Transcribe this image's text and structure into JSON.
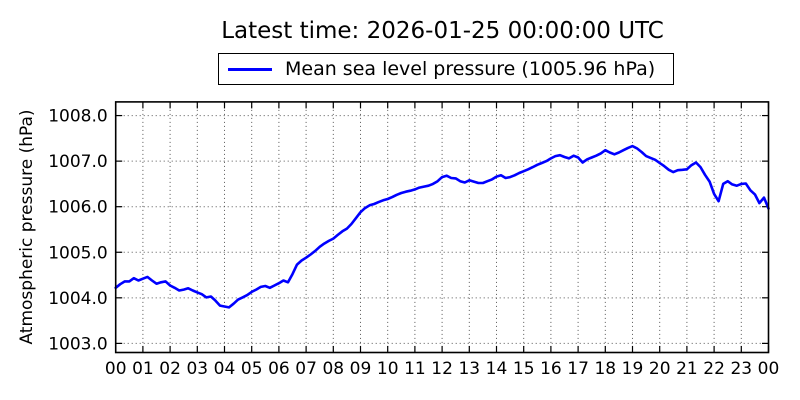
{
  "title": "Latest time: 2026-01-25 00:00:00 UTC",
  "legend": {
    "label": "Mean sea level pressure (1005.96 hPa)",
    "line_color": "#0000ff"
  },
  "axes": {
    "ylabel": "Atmospheric pressure (hPa)",
    "background": "#ffffff",
    "border_color": "#000000",
    "grid_color": "#555555"
  },
  "chart_data": {
    "type": "line",
    "title": "Latest time: 2026-01-25 00:00:00 UTC",
    "xlabel": "",
    "ylabel": "Atmospheric pressure (hPa)",
    "xlim": [
      0,
      24
    ],
    "ylim": [
      1002.8,
      1008.3
    ],
    "grid": true,
    "legend_position": "upper center",
    "x_tick_labels": [
      "00",
      "01",
      "02",
      "03",
      "04",
      "05",
      "06",
      "07",
      "08",
      "09",
      "10",
      "11",
      "12",
      "13",
      "14",
      "15",
      "16",
      "17",
      "18",
      "19",
      "20",
      "21",
      "22",
      "23",
      "00"
    ],
    "y_tick_values": [
      1008.0,
      1007.0,
      1006.0,
      1005.0,
      1004.0,
      1003.0
    ],
    "y_tick_labels": [
      "1008.0",
      "1007.0",
      "1006.0",
      "1005.0",
      "1004.0",
      "1003.0"
    ],
    "series": [
      {
        "name": "Mean sea level pressure",
        "color": "#0000ff",
        "latest_value_hpa": 1005.96,
        "x_start_hour": 0,
        "x_step_minutes": 10,
        "y_hpa": [
          1004.22,
          1004.3,
          1004.36,
          1004.36,
          1004.43,
          1004.38,
          1004.42,
          1004.46,
          1004.38,
          1004.31,
          1004.34,
          1004.36,
          1004.27,
          1004.22,
          1004.16,
          1004.18,
          1004.21,
          1004.16,
          1004.12,
          1004.08,
          1004.01,
          1004.03,
          1003.94,
          1003.83,
          1003.81,
          1003.79,
          1003.87,
          1003.96,
          1004.01,
          1004.06,
          1004.13,
          1004.18,
          1004.24,
          1004.26,
          1004.22,
          1004.27,
          1004.32,
          1004.38,
          1004.34,
          1004.52,
          1004.73,
          1004.82,
          1004.88,
          1004.95,
          1005.03,
          1005.12,
          1005.19,
          1005.25,
          1005.3,
          1005.38,
          1005.46,
          1005.52,
          1005.62,
          1005.75,
          1005.88,
          1005.97,
          1006.03,
          1006.06,
          1006.1,
          1006.14,
          1006.17,
          1006.21,
          1006.26,
          1006.3,
          1006.33,
          1006.35,
          1006.38,
          1006.42,
          1006.44,
          1006.46,
          1006.5,
          1006.56,
          1006.65,
          1006.68,
          1006.63,
          1006.62,
          1006.56,
          1006.53,
          1006.58,
          1006.55,
          1006.52,
          1006.52,
          1006.56,
          1006.6,
          1006.66,
          1006.69,
          1006.63,
          1006.65,
          1006.69,
          1006.74,
          1006.78,
          1006.82,
          1006.87,
          1006.92,
          1006.96,
          1007.0,
          1007.06,
          1007.11,
          1007.13,
          1007.09,
          1007.06,
          1007.12,
          1007.08,
          1006.97,
          1007.04,
          1007.08,
          1007.12,
          1007.17,
          1007.24,
          1007.19,
          1007.15,
          1007.19,
          1007.24,
          1007.29,
          1007.33,
          1007.28,
          1007.2,
          1007.11,
          1007.07,
          1007.03,
          1006.96,
          1006.89,
          1006.81,
          1006.76,
          1006.8,
          1006.81,
          1006.82,
          1006.91,
          1006.97,
          1006.87,
          1006.7,
          1006.55,
          1006.28,
          1006.12,
          1006.5,
          1006.56,
          1006.49,
          1006.46,
          1006.5,
          1006.51,
          1006.36,
          1006.27,
          1006.08,
          1006.2,
          1005.96
        ]
      }
    ]
  }
}
